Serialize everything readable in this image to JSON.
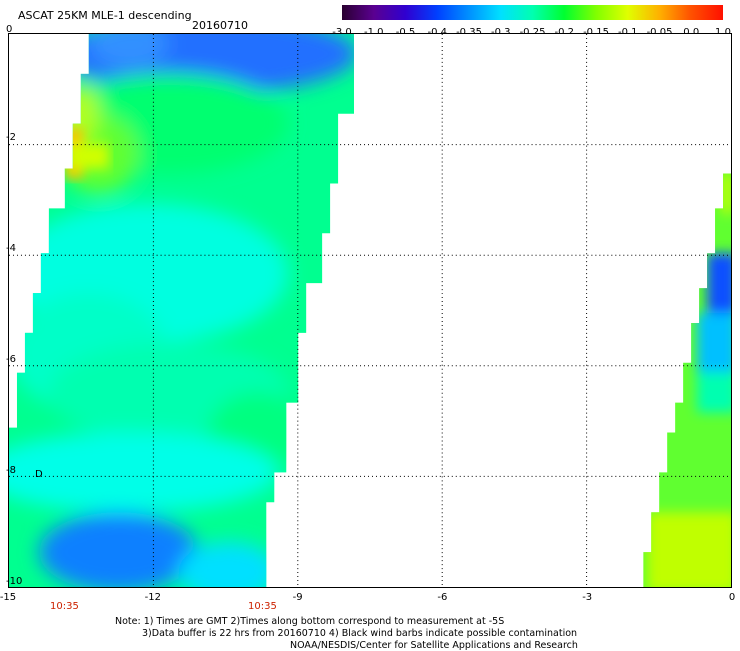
{
  "header": {
    "title": "ASCAT 25KM MLE-1 descending",
    "date": "20160710"
  },
  "colorbar": {
    "labels": [
      "-3.0",
      "-1.0",
      "-0.5",
      "-0.4",
      "-0.35",
      "-0.3",
      "-0.25",
      "-0.2",
      "-0.15",
      "-0.1",
      "-0.05",
      "0.0",
      "1.0"
    ],
    "colors": [
      "#2a0030",
      "#5a0090",
      "#3000d0",
      "#0040ff",
      "#0090ff",
      "#00e0ff",
      "#00ffb0",
      "#00ff30",
      "#80ff00",
      "#e0ff00",
      "#ffb000",
      "#ff5000",
      "#ff1000"
    ]
  },
  "map": {
    "x_ticks": [
      "-15",
      "-12",
      "-9",
      "-6",
      "-3",
      "0"
    ],
    "y_ticks": [
      "0",
      "-2",
      "-4",
      "-6",
      "-8",
      "-10"
    ],
    "x_range": [
      -15,
      0
    ],
    "y_range": [
      -10,
      0
    ],
    "grid": "dotted",
    "times": [
      "10:35",
      "10:35"
    ],
    "marker": "D"
  },
  "footer": {
    "note1": "Note: 1) Times are GMT 2)Times along bottom correspond to measurement at -5S",
    "note2": "3)Data buffer is 22 hrs from 20160710 4) Black wind barbs indicate possible contamination",
    "credit": "NOAA/NESDIS/Center for Satellite Applications and Research"
  }
}
